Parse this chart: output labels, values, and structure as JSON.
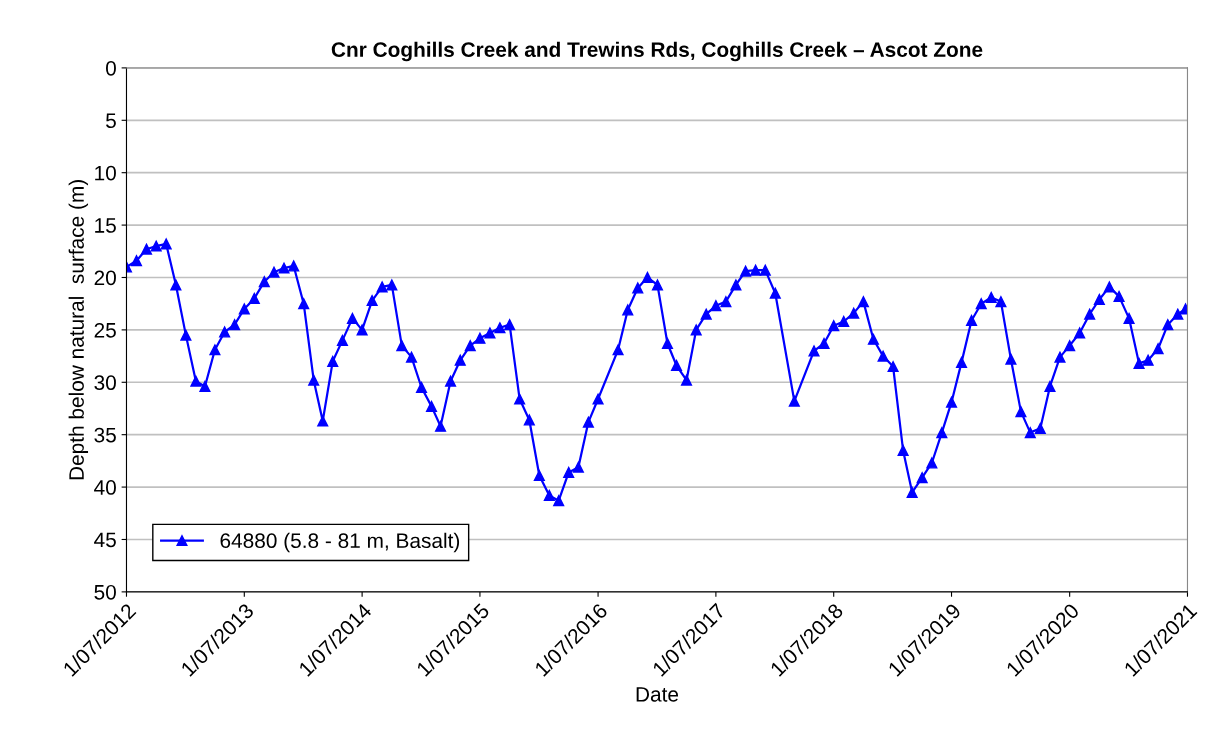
{
  "chart_data": {
    "type": "line",
    "title": "Cnr Coghills Creek and Trewins Rds, Coghills Creek – Ascot Zone",
    "xlabel": "Date",
    "ylabel": "Depth below natural  surface (m)",
    "x": [
      "2012-07",
      "2012-08",
      "2012-09",
      "2012-10",
      "2012-11",
      "2012-12",
      "2013-01",
      "2013-02",
      "2013-03",
      "2013-04",
      "2013-05",
      "2013-06",
      "2013-07",
      "2013-08",
      "2013-09",
      "2013-10",
      "2013-11",
      "2013-12",
      "2014-01",
      "2014-02",
      "2014-03",
      "2014-04",
      "2014-05",
      "2014-06",
      "2014-07",
      "2014-08",
      "2014-09",
      "2014-10",
      "2014-11",
      "2014-12",
      "2015-01",
      "2015-02",
      "2015-03",
      "2015-04",
      "2015-05",
      "2015-06",
      "2015-07",
      "2015-08",
      "2015-09",
      "2015-10",
      "2015-11",
      "2015-12",
      "2016-01",
      "2016-02",
      "2016-03",
      "2016-04",
      "2016-05",
      "2016-06",
      "2016-07",
      "2016-09",
      "2016-10",
      "2016-11",
      "2016-12",
      "2017-01",
      "2017-02",
      "2017-03",
      "2017-04",
      "2017-05",
      "2017-06",
      "2017-07",
      "2017-08",
      "2017-09",
      "2017-10",
      "2017-11",
      "2017-12",
      "2018-01",
      "2018-03",
      "2018-05",
      "2018-06",
      "2018-07",
      "2018-08",
      "2018-09",
      "2018-10",
      "2018-11",
      "2018-12",
      "2019-01",
      "2019-02",
      "2019-03",
      "2019-04",
      "2019-05",
      "2019-06",
      "2019-07",
      "2019-08",
      "2019-09",
      "2019-10",
      "2019-11",
      "2019-12",
      "2020-01",
      "2020-02",
      "2020-03",
      "2020-04",
      "2020-05",
      "2020-06",
      "2020-07",
      "2020-08",
      "2020-09",
      "2020-10",
      "2020-11",
      "2020-12",
      "2021-01",
      "2021-02",
      "2021-03",
      "2021-04",
      "2021-05",
      "2021-06-01",
      "2021-06-25"
    ],
    "series": [
      {
        "name": "64880 (5.8 - 81 m, Basalt)",
        "color": "#0000ff",
        "values": [
          19.0,
          18.4,
          17.3,
          17.0,
          16.8,
          20.7,
          25.5,
          29.9,
          30.4,
          26.9,
          25.2,
          24.5,
          23.0,
          22.0,
          20.4,
          19.5,
          19.1,
          18.9,
          22.5,
          29.8,
          33.7,
          28.0,
          26.0,
          23.9,
          25.0,
          22.2,
          20.9,
          20.7,
          26.5,
          27.6,
          30.5,
          32.3,
          34.2,
          29.9,
          27.9,
          26.5,
          25.8,
          25.3,
          24.8,
          24.5,
          31.6,
          33.6,
          38.9,
          40.8,
          41.3,
          38.6,
          38.1,
          33.8,
          31.6,
          26.9,
          23.1,
          21.0,
          20.0,
          20.7,
          26.3,
          28.4,
          29.8,
          25.0,
          23.5,
          22.7,
          22.3,
          20.7,
          19.4,
          19.3,
          19.3,
          21.5,
          31.8,
          27.0,
          26.3,
          24.6,
          24.2,
          23.4,
          22.3,
          25.9,
          27.5,
          28.5,
          36.5,
          40.5,
          39.1,
          37.7,
          34.8,
          31.9,
          28.1,
          24.1,
          22.5,
          21.9,
          22.3,
          27.8,
          32.8,
          34.8,
          34.4,
          30.4,
          27.6,
          26.5,
          25.3,
          23.5,
          22.1,
          20.9,
          21.8,
          23.9,
          28.2,
          27.9,
          26.8,
          24.5,
          23.5,
          23.0
        ]
      }
    ],
    "xlim": [
      "2012-07-01",
      "2021-07-01"
    ],
    "xticks": [
      {
        "value": "2012-07-01",
        "label": "1/07/2012"
      },
      {
        "value": "2013-07-01",
        "label": "1/07/2013"
      },
      {
        "value": "2014-07-01",
        "label": "1/07/2014"
      },
      {
        "value": "2015-07-01",
        "label": "1/07/2015"
      },
      {
        "value": "2016-07-01",
        "label": "1/07/2016"
      },
      {
        "value": "2017-07-01",
        "label": "1/07/2017"
      },
      {
        "value": "2018-07-01",
        "label": "1/07/2018"
      },
      {
        "value": "2019-07-01",
        "label": "1/07/2019"
      },
      {
        "value": "2020-07-01",
        "label": "1/07/2020"
      },
      {
        "value": "2021-07-01",
        "label": "1/07/2021"
      }
    ],
    "ylim": [
      50,
      0
    ],
    "yticks": [
      0,
      5,
      10,
      15,
      20,
      25,
      30,
      35,
      40,
      45,
      50
    ],
    "grid": "y",
    "legend": "bottom left",
    "marker": "triangle",
    "line_style": "solid"
  }
}
